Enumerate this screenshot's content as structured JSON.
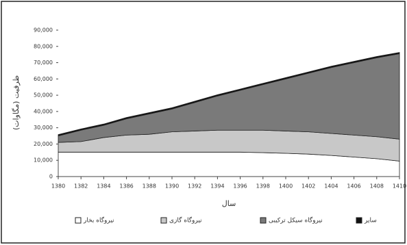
{
  "chart_data": {
    "type": "stacked-area",
    "x_label": "سال",
    "y_label": "ظرفیت (مگاوات)",
    "x": [
      1380,
      1382,
      1384,
      1386,
      1388,
      1390,
      1392,
      1394,
      1396,
      1398,
      1400,
      1402,
      1404,
      1406,
      1408,
      1410
    ],
    "series": [
      {
        "name": "نیروگاه بخار",
        "color": "#ffffff",
        "values": [
          15000,
          15000,
          15000,
          15000,
          15000,
          15000,
          15000,
          15000,
          15000,
          14700,
          14300,
          13800,
          13000,
          12000,
          11000,
          9500
        ]
      },
      {
        "name": "نیروگاه گازی",
        "color": "#c8c8c8",
        "values": [
          6000,
          6500,
          9000,
          10500,
          11000,
          12500,
          13000,
          13500,
          13500,
          13800,
          13700,
          13700,
          13500,
          13500,
          13500,
          13500
        ]
      },
      {
        "name": "نیروگاه سیکل ترکیبی",
        "color": "#7a7a7a",
        "values": [
          4000,
          7000,
          7500,
          10000,
          12500,
          14000,
          17500,
          21000,
          24500,
          28000,
          32000,
          36000,
          40500,
          44500,
          48500,
          52500
        ]
      },
      {
        "name": "سایر",
        "color": "#111111",
        "values": [
          800,
          800,
          800,
          800,
          800,
          800,
          800,
          800,
          800,
          800,
          800,
          800,
          800,
          800,
          800,
          800
        ]
      }
    ],
    "xlim": [
      1380,
      1410
    ],
    "xticks": [
      1380,
      1382,
      1384,
      1386,
      1388,
      1390,
      1392,
      1394,
      1396,
      1398,
      1400,
      1402,
      1404,
      1406,
      1408,
      1410
    ],
    "ylim": [
      0,
      90000
    ],
    "yticks": [
      0,
      {
        "value": 10000,
        "label": "10,000"
      },
      {
        "value": 20000,
        "label": "20,000"
      },
      {
        "value": 30000,
        "label": "30,000"
      },
      {
        "value": 40000,
        "label": "40,000"
      },
      {
        "value": 50000,
        "label": "50,000"
      },
      {
        "value": 60000,
        "label": "60,000"
      },
      {
        "value": 70000,
        "label": "70,000"
      },
      {
        "value": 80000,
        "label": "80,000"
      },
      {
        "value": 90000,
        "label": "90,000"
      }
    ],
    "grid": false
  }
}
